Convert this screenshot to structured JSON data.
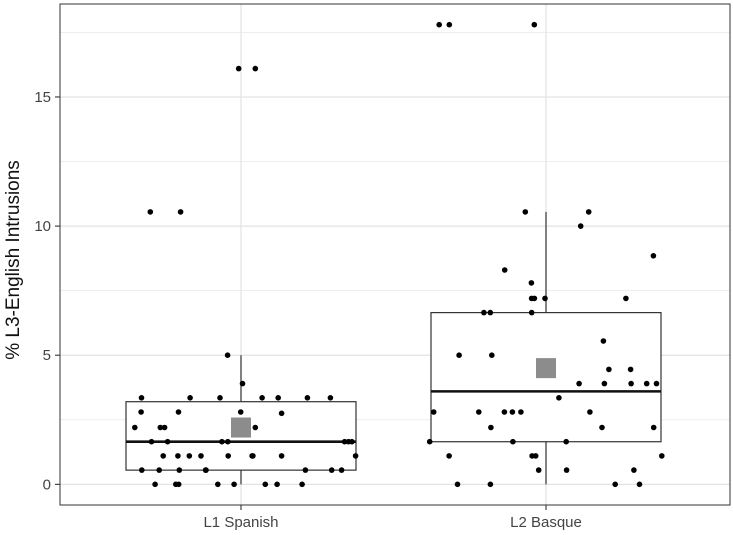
{
  "chart_data": {
    "type": "box",
    "title": "",
    "xlabel": "",
    "ylabel": "% L3-English Intrusions",
    "ylim": [
      -0.8,
      18.6
    ],
    "yticks": [
      0,
      5,
      10,
      15
    ],
    "categories": [
      "L1 Spanish",
      "L2 Basque"
    ],
    "grid": true,
    "legend": "none",
    "colors": {
      "box_fill": "#ffffff",
      "box_stroke": "#333333",
      "points": "#000000",
      "mean_marker": "#8c8c8c",
      "grid": "#e3e3e3",
      "panel_border": "#333333"
    },
    "boxes": [
      {
        "category": "L1 Spanish",
        "whisker_low": 0,
        "q1": 0.55,
        "median": 1.65,
        "q3": 3.2,
        "whisker_high": 5.0,
        "mean": 2.2,
        "outliers": [
          10.55,
          10.55,
          16.1,
          16.1
        ]
      },
      {
        "category": "L2 Basque",
        "whisker_low": 0,
        "q1": 1.65,
        "median": 3.6,
        "q3": 6.65,
        "whisker_high": 10.55,
        "mean": 4.5,
        "outliers": [
          17.8,
          17.8,
          17.8
        ]
      }
    ],
    "points": [
      {
        "category": "L1 Spanish",
        "values": [
          16.1,
          16.1,
          10.55,
          10.55,
          5.0,
          3.9,
          3.35,
          3.35,
          3.35,
          3.35,
          3.35,
          3.35,
          3.35,
          2.8,
          2.8,
          2.8,
          2.75,
          2.2,
          2.2,
          2.2,
          2.2,
          2.2,
          1.65,
          1.65,
          1.65,
          1.65,
          1.65,
          1.65,
          1.65,
          1.1,
          1.1,
          1.1,
          1.1,
          1.1,
          1.1,
          1.1,
          1.1,
          1.1,
          0.55,
          0.55,
          0.55,
          0.55,
          0.55,
          0.55,
          0.55,
          0.55,
          0,
          0,
          0,
          0,
          0,
          0,
          0,
          0
        ]
      },
      {
        "category": "L2 Basque",
        "values": [
          17.8,
          17.8,
          17.8,
          10.55,
          10.55,
          10.0,
          8.85,
          8.3,
          7.8,
          7.2,
          7.2,
          7.2,
          7.2,
          6.65,
          6.65,
          6.65,
          5.55,
          5.0,
          5.0,
          4.45,
          4.45,
          3.9,
          3.9,
          3.9,
          3.9,
          3.9,
          3.35,
          2.8,
          2.8,
          2.8,
          2.8,
          2.8,
          2.8,
          2.2,
          2.2,
          2.2,
          1.65,
          1.65,
          1.65,
          1.1,
          1.1,
          1.1,
          1.1,
          0.55,
          0.55,
          0.55,
          0,
          0,
          0,
          0
        ]
      }
    ]
  }
}
